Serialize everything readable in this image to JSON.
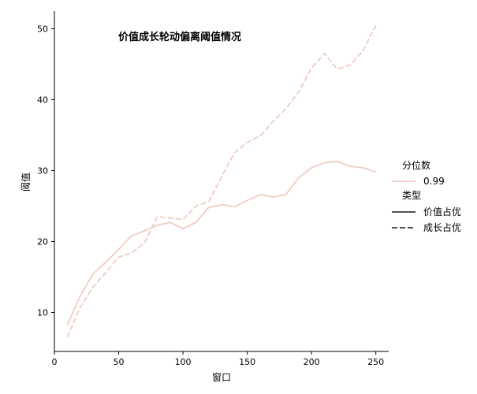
{
  "chart_data": {
    "type": "line",
    "title": "价值成长轮动偏离阈值情况",
    "xlabel": "窗口",
    "ylabel": "阈值",
    "xlim": [
      0,
      260
    ],
    "ylim": [
      4.5,
      52.5
    ],
    "xticks": [
      0,
      50,
      100,
      150,
      200,
      250
    ],
    "yticks": [
      10,
      20,
      30,
      40,
      50
    ],
    "grid": false,
    "legend_position": "right",
    "legend": {
      "hue_title": "分位数",
      "hue_label": "0.99",
      "style_title": "类型",
      "style_labels": [
        "价值占优",
        "成长占优"
      ]
    },
    "colors": {
      "line": "#eecdc4",
      "axis": "#000000",
      "legend_key": "#3a3a3a"
    },
    "x": [
      10,
      20,
      30,
      40,
      50,
      60,
      70,
      80,
      90,
      100,
      110,
      120,
      130,
      140,
      150,
      160,
      170,
      180,
      190,
      200,
      210,
      220,
      230,
      240,
      250
    ],
    "series": [
      {
        "name": "价值占优",
        "dash": "solid",
        "values": [
          8.2,
          12.3,
          15.4,
          17.1,
          18.9,
          20.8,
          21.5,
          22.3,
          22.7,
          21.8,
          22.7,
          24.8,
          25.2,
          24.9,
          25.8,
          26.6,
          26.3,
          26.6,
          29.0,
          30.4,
          31.1,
          31.3,
          30.6,
          30.4,
          29.8
        ]
      },
      {
        "name": "成长占优",
        "dash": "dashed",
        "values": [
          6.5,
          10.7,
          13.6,
          15.6,
          17.8,
          18.4,
          19.8,
          23.5,
          23.3,
          23.1,
          25.0,
          25.6,
          29.1,
          32.5,
          34.0,
          34.9,
          36.9,
          38.7,
          41.1,
          44.5,
          46.5,
          44.3,
          44.9,
          46.9,
          50.5
        ]
      }
    ]
  }
}
